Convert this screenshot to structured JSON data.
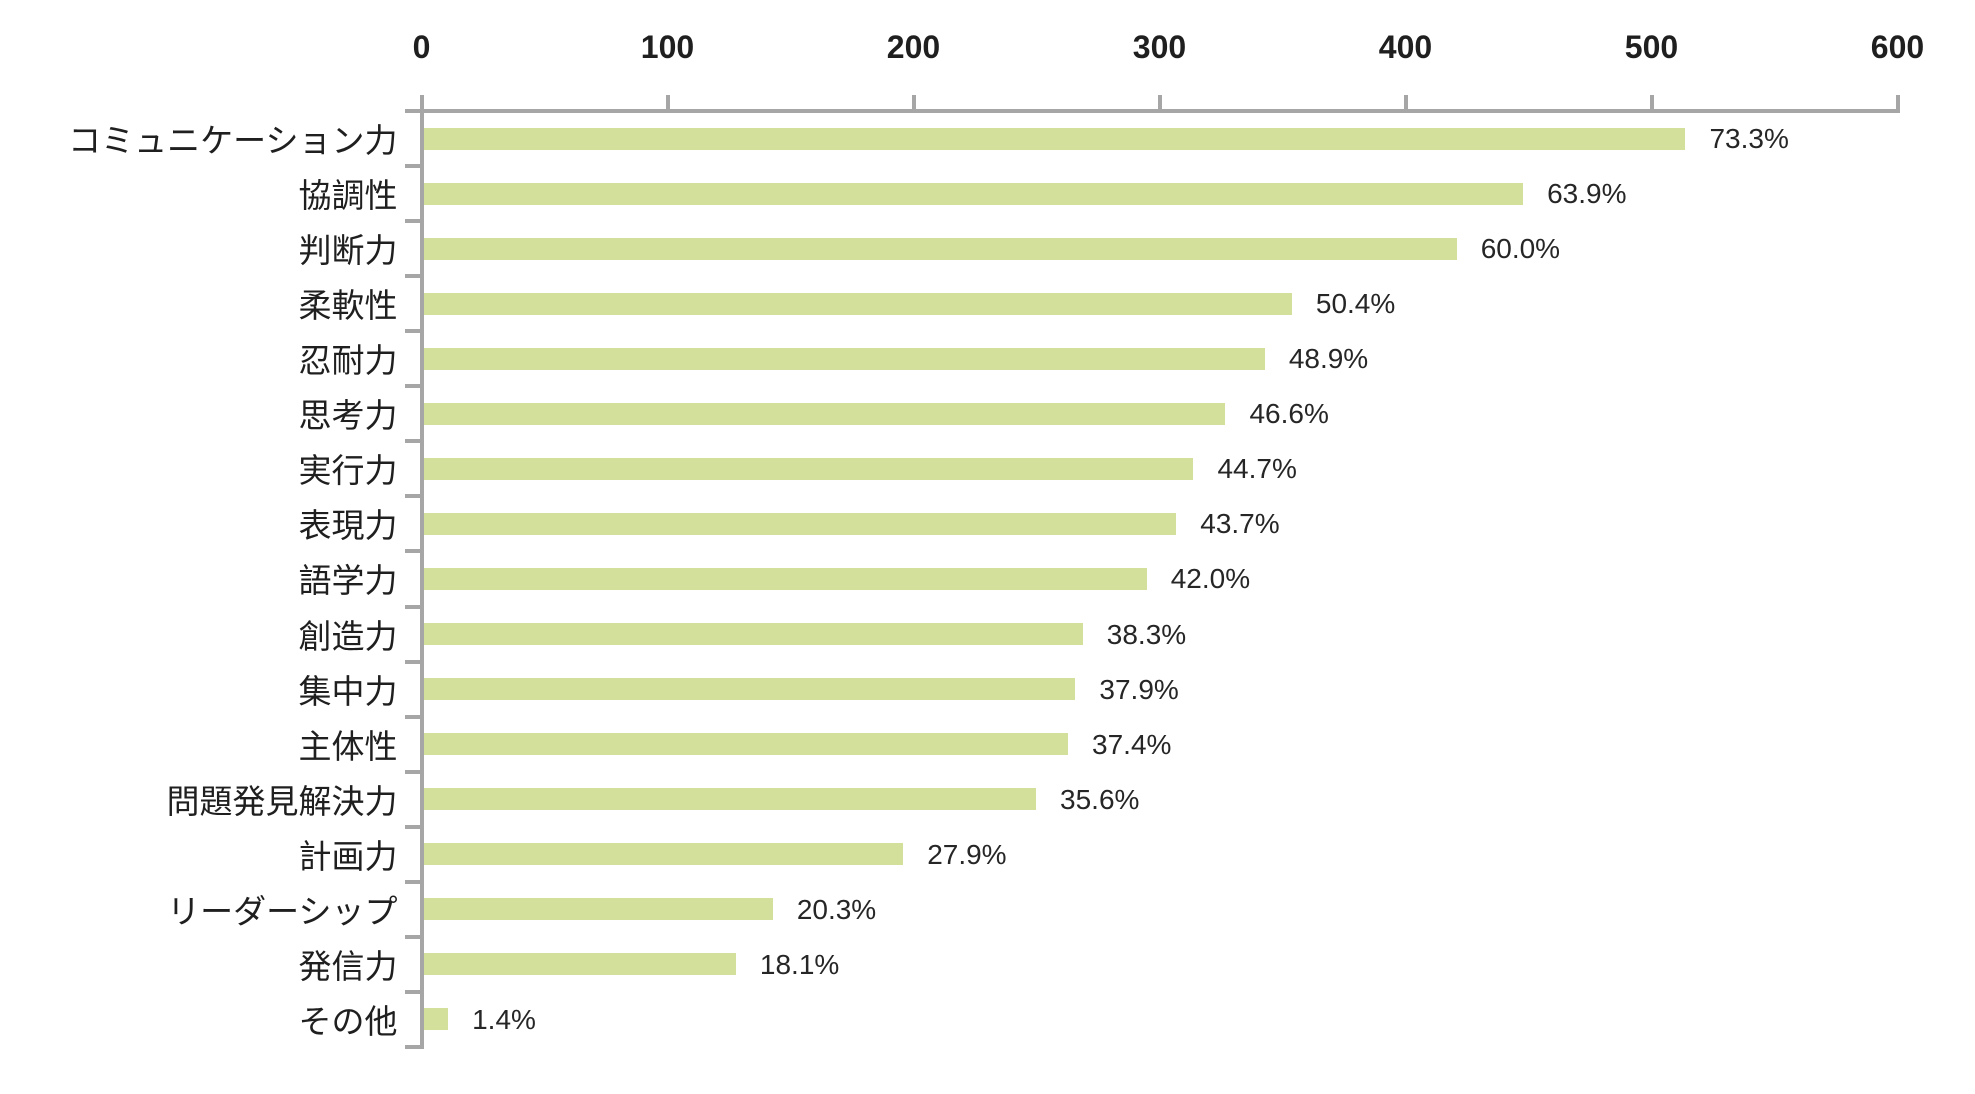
{
  "chart_data": {
    "type": "bar",
    "orientation": "horizontal",
    "title": "",
    "xlabel": "",
    "ylabel": "",
    "categories": [
      "コミュニケーション力",
      "協調性",
      "判断力",
      "柔軟性",
      "忍耐力",
      "思考力",
      "実行力",
      "表現力",
      "語学力",
      "創造力",
      "集中力",
      "主体性",
      "問題発見解決力",
      "計画力",
      "リーダーシップ",
      "発信力",
      "その他"
    ],
    "percent_labels": [
      "73.3%",
      "63.9%",
      "60.0%",
      "50.4%",
      "48.9%",
      "46.6%",
      "44.7%",
      "43.7%",
      "42.0%",
      "38.3%",
      "37.9%",
      "37.4%",
      "35.6%",
      "27.9%",
      "20.3%",
      "18.1%",
      "1.4%"
    ],
    "percents": [
      73.3,
      63.9,
      60.0,
      50.4,
      48.9,
      46.6,
      44.7,
      43.7,
      42.0,
      38.3,
      37.9,
      37.4,
      35.6,
      27.9,
      20.3,
      18.1,
      1.4
    ],
    "values_axis_units_estimated": [
      513,
      447,
      420,
      353,
      342,
      326,
      313,
      306,
      294,
      268,
      265,
      262,
      249,
      195,
      142,
      127,
      10
    ],
    "x_axis": {
      "position": "top",
      "min": 0,
      "max": 600,
      "tick_interval": 100,
      "tick_labels": [
        "0",
        "100",
        "200",
        "300",
        "400",
        "500",
        "600"
      ]
    },
    "grid": false,
    "legend": false,
    "colors": {
      "bar_fill": "#d3e09b",
      "axis_line": "#a6a6a6",
      "tick_label_text": "#1f1f1f",
      "category_text": "#1f1f1f",
      "value_label_text": "#262626",
      "background": "#ffffff"
    }
  }
}
